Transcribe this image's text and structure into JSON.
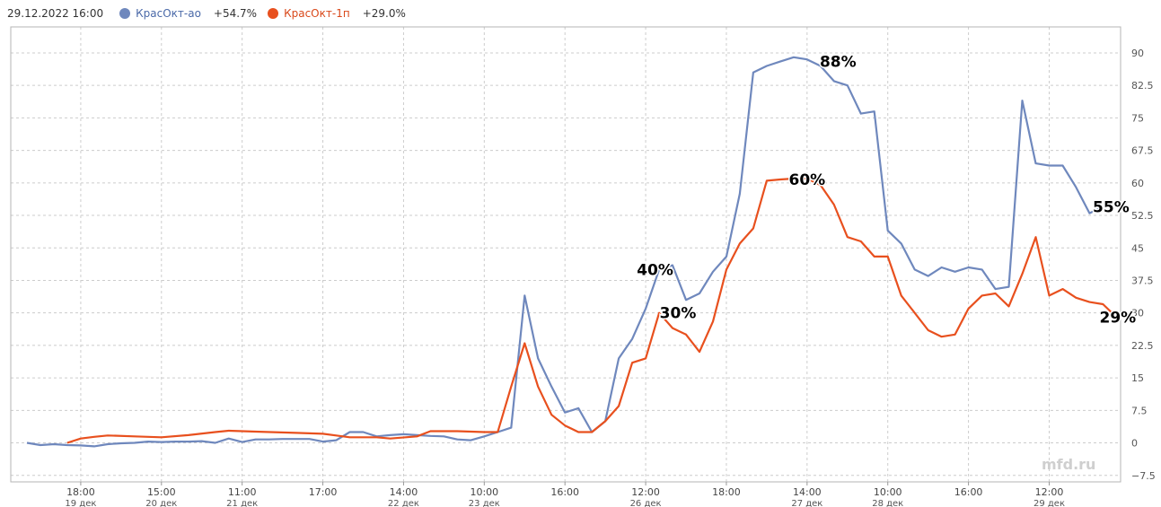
{
  "legend": {
    "datetime": "29.12.2022 16:00",
    "series": [
      {
        "name": "КрасОкт-ао",
        "change": "+54.7%",
        "color": "#6f88bd"
      },
      {
        "name": "КрасОкт-1п",
        "change": "+29.0%",
        "color": "#e8501e"
      }
    ]
  },
  "watermark": "mfd.ru",
  "chart_data": {
    "type": "line",
    "x_count": 81,
    "y_ticks": [
      "90",
      "82.5",
      "75",
      "67.5",
      "60",
      "52.5",
      "45",
      "37.5",
      "30",
      "22.5",
      "15",
      "7.5",
      "0",
      "−7.5"
    ],
    "y_tick_values": [
      90,
      82.5,
      75,
      67.5,
      60,
      52.5,
      45,
      37.5,
      30,
      22.5,
      15,
      7.5,
      0,
      -7.5
    ],
    "ylim": [
      -9,
      96
    ],
    "x_ticks": [
      {
        "i": 4,
        "time": "18:00",
        "date": "19 дек"
      },
      {
        "i": 10,
        "time": "15:00",
        "date": "20 дек"
      },
      {
        "i": 16,
        "time": "11:00",
        "date": "21 дек"
      },
      {
        "i": 22,
        "time": "17:00",
        "date": ""
      },
      {
        "i": 28,
        "time": "14:00",
        "date": "22 дек"
      },
      {
        "i": 34,
        "time": "10:00",
        "date": "23 дек"
      },
      {
        "i": 40,
        "time": "16:00",
        "date": ""
      },
      {
        "i": 46,
        "time": "12:00",
        "date": "26 дек"
      },
      {
        "i": 52,
        "time": "18:00",
        "date": ""
      },
      {
        "i": 58,
        "time": "14:00",
        "date": "27 дек"
      },
      {
        "i": 64,
        "time": "10:00",
        "date": "28 дек"
      },
      {
        "i": 70,
        "time": "16:00",
        "date": ""
      },
      {
        "i": 76,
        "time": "12:00",
        "date": "29 дек"
      }
    ],
    "grid": true,
    "series": [
      {
        "name": "КрасОкт-ао",
        "color": "#6f88bd",
        "points": [
          [
            0,
            0
          ],
          [
            1,
            -0.5
          ],
          [
            2,
            -0.3
          ],
          [
            3,
            -0.5
          ],
          [
            4,
            -0.6
          ],
          [
            5,
            -0.8
          ],
          [
            6,
            -0.3
          ],
          [
            7,
            -0.1
          ],
          [
            8,
            0
          ],
          [
            9,
            0.3
          ],
          [
            10,
            0.2
          ],
          [
            11,
            0.3
          ],
          [
            12,
            0.3
          ],
          [
            13,
            0.4
          ],
          [
            14,
            0
          ],
          [
            15,
            1
          ],
          [
            16,
            0.2
          ],
          [
            17,
            0.8
          ],
          [
            18,
            0.8
          ],
          [
            19,
            0.9
          ],
          [
            20,
            0.9
          ],
          [
            21,
            0.9
          ],
          [
            22,
            0.3
          ],
          [
            23,
            0.6
          ],
          [
            24,
            2.5
          ],
          [
            25,
            2.5
          ],
          [
            26,
            1.5
          ],
          [
            27,
            1.8
          ],
          [
            28,
            2
          ],
          [
            29,
            1.8
          ],
          [
            30,
            1.6
          ],
          [
            31,
            1.5
          ],
          [
            32,
            0.8
          ],
          [
            33,
            0.6
          ],
          [
            34,
            1.5
          ],
          [
            35,
            2.5
          ],
          [
            36,
            3.5
          ],
          [
            37,
            34
          ],
          [
            38,
            19.5
          ],
          [
            39,
            13
          ],
          [
            40,
            7
          ],
          [
            41,
            8
          ],
          [
            42,
            2.5
          ],
          [
            43,
            5
          ],
          [
            44,
            19.5
          ],
          [
            45,
            24
          ],
          [
            46,
            31
          ],
          [
            47,
            40
          ],
          [
            48,
            41
          ],
          [
            49,
            33
          ],
          [
            50,
            34.5
          ],
          [
            51,
            39.5
          ],
          [
            52,
            43
          ],
          [
            53,
            57.5
          ],
          [
            54,
            85.5
          ],
          [
            55,
            87
          ],
          [
            56,
            88
          ],
          [
            57,
            89
          ],
          [
            58,
            88.5
          ],
          [
            59,
            87
          ],
          [
            60,
            83.5
          ],
          [
            61,
            82.5
          ],
          [
            62,
            76
          ],
          [
            63,
            76.5
          ],
          [
            64,
            49
          ],
          [
            65,
            46
          ],
          [
            66,
            40
          ],
          [
            67,
            38.5
          ],
          [
            68,
            40.5
          ],
          [
            69,
            39.5
          ],
          [
            70,
            40.5
          ],
          [
            71,
            40
          ],
          [
            72,
            35.5
          ],
          [
            73,
            36
          ],
          [
            74,
            79
          ],
          [
            75,
            64.5
          ],
          [
            76,
            64
          ],
          [
            77,
            64
          ],
          [
            78,
            59
          ],
          [
            79,
            53
          ],
          [
            80,
            54.5
          ]
        ]
      },
      {
        "name": "КрасОкт-1п",
        "color": "#e8501e",
        "points": [
          [
            3,
            0
          ],
          [
            4,
            1
          ],
          [
            5,
            1.4
          ],
          [
            6,
            1.7
          ],
          [
            8,
            1.5
          ],
          [
            10,
            1.3
          ],
          [
            12,
            1.8
          ],
          [
            14,
            2.5
          ],
          [
            15,
            2.8
          ],
          [
            17,
            2.6
          ],
          [
            20,
            2.3
          ],
          [
            22,
            2.1
          ],
          [
            24,
            1.3
          ],
          [
            26,
            1.3
          ],
          [
            27,
            1
          ],
          [
            29,
            1.5
          ],
          [
            30,
            2.7
          ],
          [
            32,
            2.7
          ],
          [
            34,
            2.5
          ],
          [
            35,
            2.5
          ],
          [
            36,
            13
          ],
          [
            37,
            23
          ],
          [
            38,
            13
          ],
          [
            39,
            6.5
          ],
          [
            40,
            4
          ],
          [
            41,
            2.5
          ],
          [
            42,
            2.5
          ],
          [
            43,
            5
          ],
          [
            44,
            8.5
          ],
          [
            45,
            18.5
          ],
          [
            46,
            19.5
          ],
          [
            47,
            30
          ],
          [
            48,
            26.5
          ],
          [
            49,
            25
          ],
          [
            50,
            21
          ],
          [
            51,
            28
          ],
          [
            52,
            40
          ],
          [
            53,
            46
          ],
          [
            54,
            49.5
          ],
          [
            55,
            60.5
          ],
          [
            56,
            60.8
          ],
          [
            57,
            61
          ],
          [
            58,
            61
          ],
          [
            59,
            59.5
          ],
          [
            60,
            55
          ],
          [
            61,
            47.5
          ],
          [
            62,
            46.5
          ],
          [
            63,
            43
          ],
          [
            64,
            43
          ],
          [
            65,
            34
          ],
          [
            66,
            30
          ],
          [
            67,
            26
          ],
          [
            68,
            24.5
          ],
          [
            69,
            25
          ],
          [
            70,
            31
          ],
          [
            71,
            34
          ],
          [
            72,
            34.5
          ],
          [
            73,
            31.5
          ],
          [
            74,
            39
          ],
          [
            75,
            47.5
          ],
          [
            76,
            34
          ],
          [
            77,
            35.5
          ],
          [
            78,
            33.5
          ],
          [
            79,
            32.5
          ],
          [
            80,
            32
          ],
          [
            81,
            29
          ]
        ]
      }
    ],
    "annotations": [
      {
        "label": "88%",
        "i": 60.3,
        "y": 88
      },
      {
        "label": "60%",
        "i": 58,
        "y": 60.8
      },
      {
        "label": "40%",
        "i": 46.7,
        "y": 40
      },
      {
        "label": "30%",
        "i": 48.4,
        "y": 30
      },
      {
        "label": "55%",
        "i": 80.6,
        "y": 54.5
      },
      {
        "label": "29%",
        "i": 81.1,
        "y": 29
      }
    ]
  }
}
